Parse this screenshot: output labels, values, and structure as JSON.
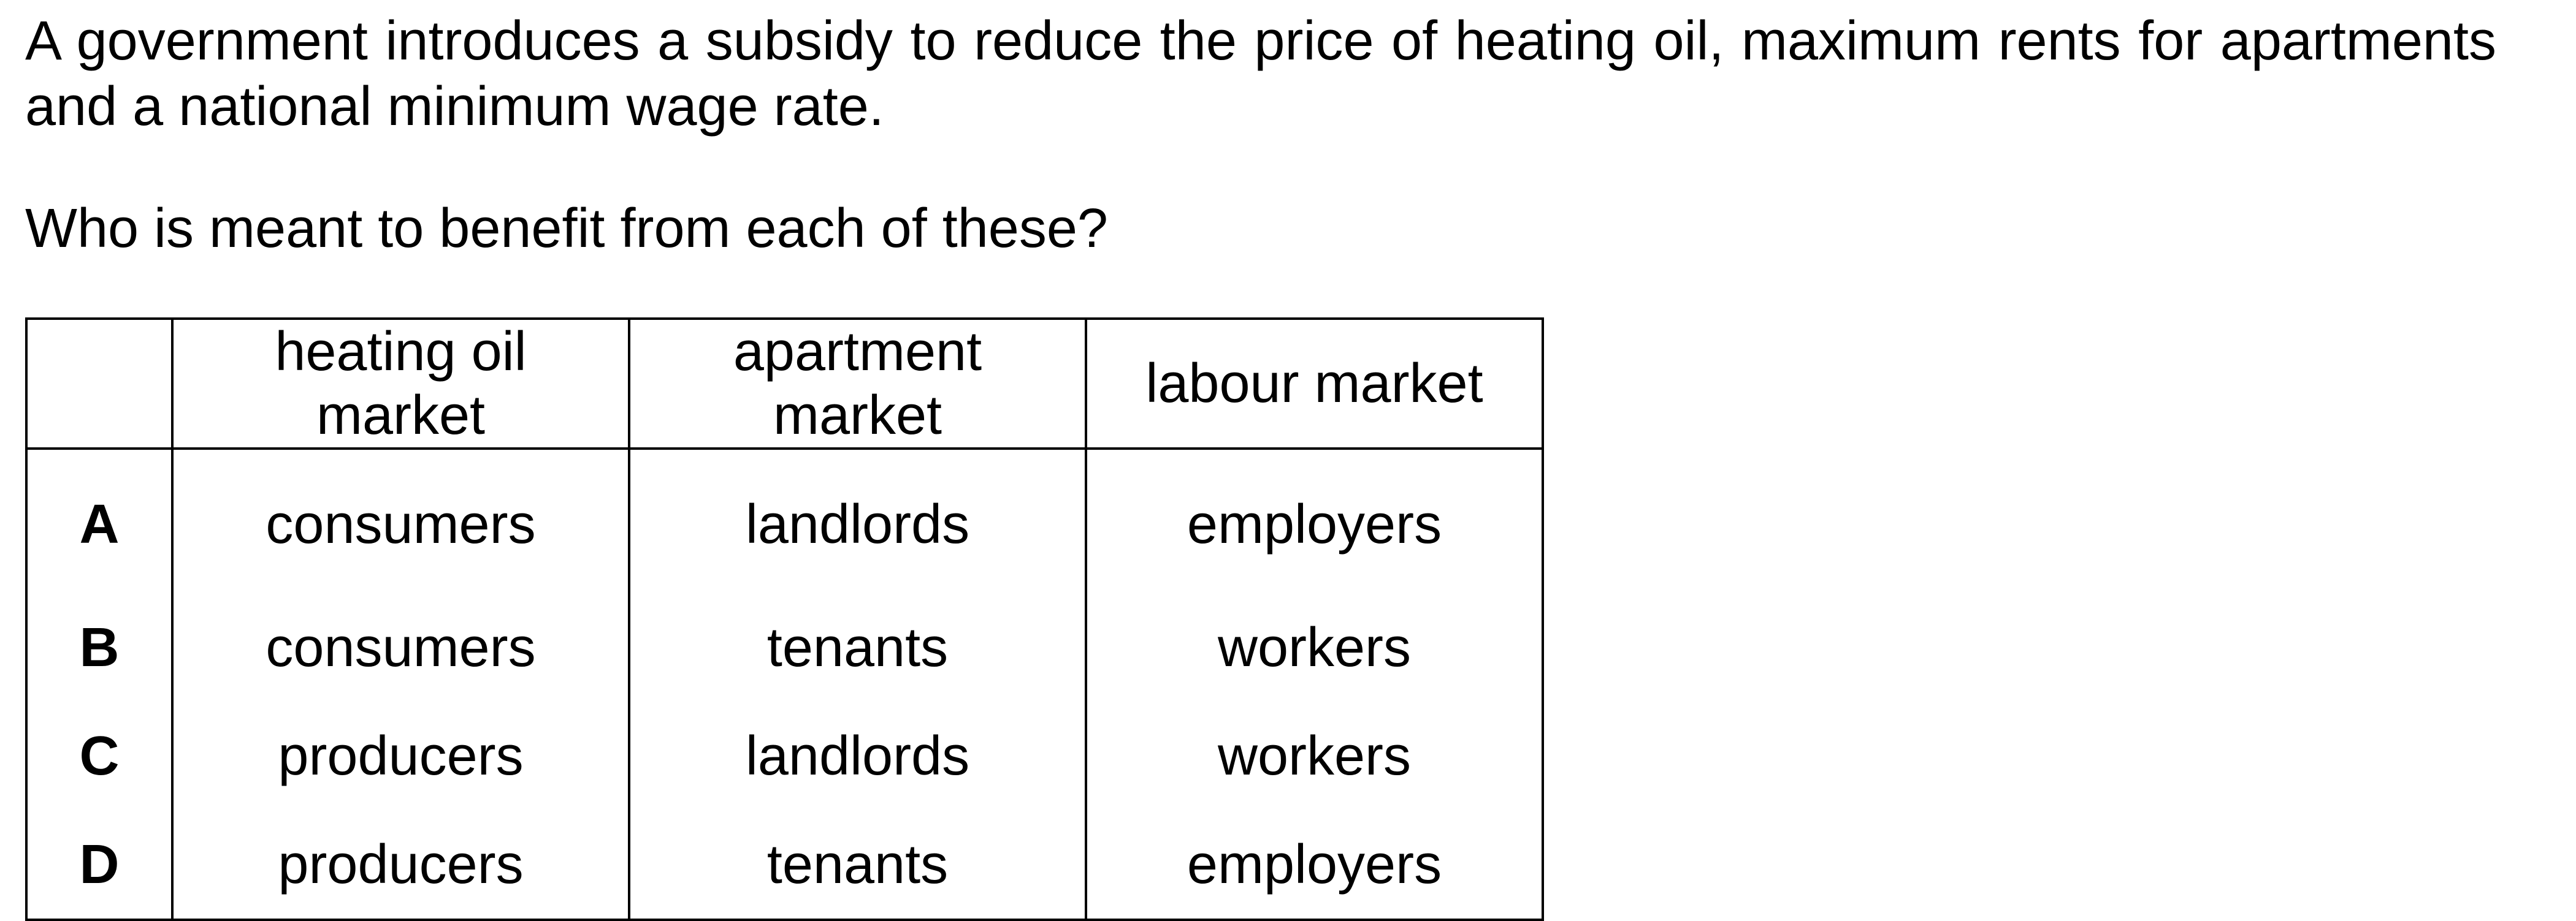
{
  "question": {
    "stem": "A government introduces a subsidy to reduce the price of heating oil, maximum rents for apartments and a national minimum wage rate.",
    "prompt": "Who is meant to benefit from each of these?"
  },
  "table": {
    "headers": [
      "",
      "heating oil market",
      "apartment market",
      "labour market"
    ],
    "rows": [
      {
        "letter": "A",
        "heating_oil": "consumers",
        "apartment": "landlords",
        "labour": "employers"
      },
      {
        "letter": "B",
        "heating_oil": "consumers",
        "apartment": "tenants",
        "labour": "workers"
      },
      {
        "letter": "C",
        "heating_oil": "producers",
        "apartment": "landlords",
        "labour": "workers"
      },
      {
        "letter": "D",
        "heating_oil": "producers",
        "apartment": "tenants",
        "labour": "employers"
      }
    ]
  }
}
